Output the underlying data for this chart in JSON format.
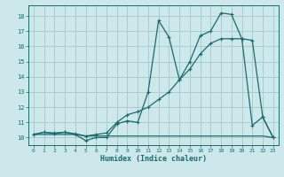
{
  "xlabel": "Humidex (Indice chaleur)",
  "bg_color": "#cce8eb",
  "grid_color": "#aacccc",
  "line_color": "#1a6b6b",
  "xlim": [
    -0.5,
    23.5
  ],
  "ylim": [
    9.5,
    18.7
  ],
  "xticks": [
    0,
    1,
    2,
    3,
    4,
    5,
    6,
    7,
    8,
    9,
    10,
    11,
    12,
    13,
    14,
    15,
    16,
    17,
    18,
    19,
    20,
    21,
    22,
    23
  ],
  "yticks": [
    10,
    11,
    12,
    13,
    14,
    15,
    16,
    17,
    18
  ],
  "line1_x": [
    0,
    1,
    2,
    3,
    4,
    5,
    6,
    7,
    8,
    9,
    10,
    11,
    12,
    13,
    14,
    15,
    16,
    17,
    18,
    19,
    20,
    21,
    22,
    23
  ],
  "line1_y": [
    10.2,
    10.35,
    10.25,
    10.35,
    10.2,
    9.8,
    10.0,
    10.0,
    10.9,
    11.1,
    11.0,
    13.0,
    17.7,
    16.6,
    13.8,
    15.0,
    16.7,
    17.0,
    18.2,
    18.1,
    16.5,
    10.8,
    11.35,
    10.0
  ],
  "line2_x": [
    0,
    1,
    2,
    3,
    4,
    5,
    6,
    7,
    8,
    9,
    10,
    11,
    12,
    13,
    14,
    15,
    16,
    17,
    18,
    19,
    20,
    21,
    22,
    23
  ],
  "line2_y": [
    10.2,
    10.35,
    10.3,
    10.35,
    10.25,
    10.1,
    10.2,
    10.3,
    11.0,
    11.5,
    11.7,
    12.0,
    12.5,
    13.0,
    13.8,
    14.5,
    15.5,
    16.2,
    16.5,
    16.5,
    16.5,
    16.4,
    11.35,
    10.0
  ],
  "line3_x": [
    0,
    1,
    2,
    3,
    4,
    5,
    6,
    7,
    8,
    9,
    10,
    11,
    12,
    13,
    14,
    15,
    16,
    17,
    18,
    19,
    20,
    21,
    22,
    23
  ],
  "line3_y": [
    10.2,
    10.2,
    10.2,
    10.2,
    10.2,
    10.1,
    10.1,
    10.1,
    10.1,
    10.1,
    10.1,
    10.1,
    10.1,
    10.1,
    10.1,
    10.1,
    10.1,
    10.1,
    10.1,
    10.1,
    10.1,
    10.1,
    10.1,
    10.0
  ]
}
